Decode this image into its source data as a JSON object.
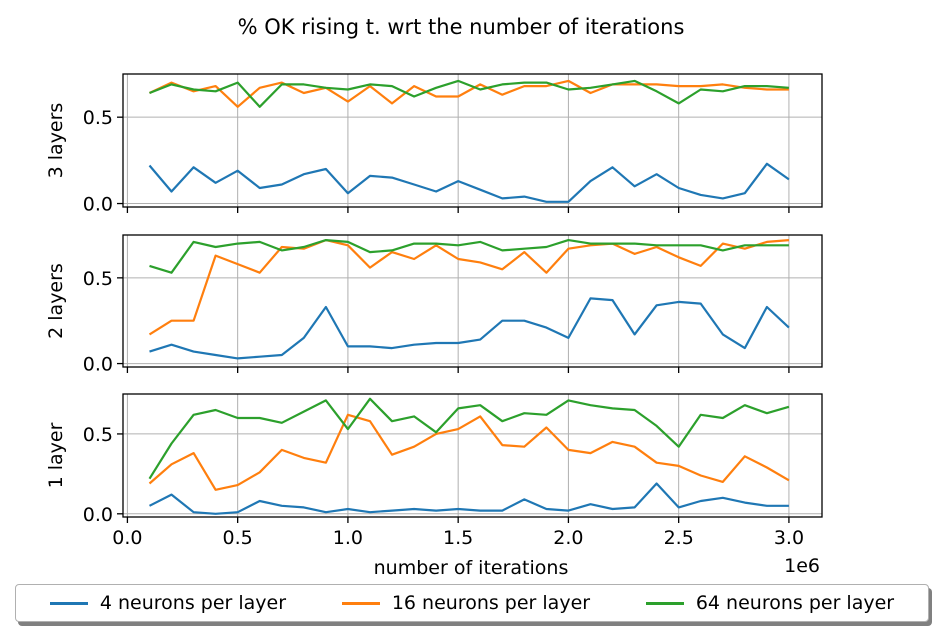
{
  "chart_data": {
    "type": "line",
    "title": "% OK rising t. wrt the number of iterations",
    "xlabel": "number of iterations",
    "x_offset_label": "1e6",
    "x": [
      100000,
      200000,
      300000,
      400000,
      500000,
      600000,
      700000,
      800000,
      900000,
      1000000,
      1100000,
      1200000,
      1300000,
      1400000,
      1500000,
      1600000,
      1700000,
      1800000,
      1900000,
      2000000,
      2100000,
      2200000,
      2300000,
      2400000,
      2500000,
      2600000,
      2700000,
      2800000,
      2900000,
      3000000
    ],
    "xlim": [
      -20000,
      3150000
    ],
    "xticks": [
      0,
      500000,
      1000000,
      1500000,
      2000000,
      2500000,
      3000000
    ],
    "xtick_labels": [
      "0.0",
      "0.5",
      "1.0",
      "1.5",
      "2.0",
      "2.5",
      "3.0"
    ],
    "ylim": [
      -0.02,
      0.75
    ],
    "yticks": [
      0,
      0.5
    ],
    "ytick_labels": [
      "0.0",
      "0.5"
    ],
    "grid": true,
    "legend_placement": "bottom",
    "legend": [
      "4 neurons per layer",
      "16 neurons per layer",
      "64 neurons per layer"
    ],
    "colors": [
      "#1f77b4",
      "#ff7f0e",
      "#2ca02c"
    ],
    "subplots": [
      {
        "ylabel": "3 layers",
        "series": [
          {
            "name": "4 neurons per layer",
            "values": [
              0.22,
              0.07,
              0.21,
              0.12,
              0.19,
              0.09,
              0.11,
              0.17,
              0.2,
              0.06,
              0.16,
              0.15,
              0.11,
              0.07,
              0.13,
              0.08,
              0.03,
              0.04,
              0.01,
              0.01,
              0.13,
              0.21,
              0.1,
              0.17,
              0.09,
              0.05,
              0.03,
              0.06,
              0.23,
              0.14
            ]
          },
          {
            "name": "16 neurons per layer",
            "values": [
              0.64,
              0.7,
              0.65,
              0.68,
              0.56,
              0.67,
              0.7,
              0.64,
              0.67,
              0.59,
              0.68,
              0.58,
              0.68,
              0.62,
              0.62,
              0.69,
              0.63,
              0.68,
              0.68,
              0.71,
              0.64,
              0.69,
              0.69,
              0.69,
              0.68,
              0.68,
              0.69,
              0.67,
              0.66,
              0.66
            ]
          },
          {
            "name": "64 neurons per layer",
            "values": [
              0.64,
              0.69,
              0.66,
              0.65,
              0.7,
              0.56,
              0.69,
              0.69,
              0.67,
              0.66,
              0.69,
              0.68,
              0.62,
              0.67,
              0.71,
              0.66,
              0.69,
              0.7,
              0.7,
              0.66,
              0.67,
              0.69,
              0.71,
              0.65,
              0.58,
              0.66,
              0.65,
              0.68,
              0.68,
              0.67
            ]
          }
        ]
      },
      {
        "ylabel": "2 layers",
        "series": [
          {
            "name": "4 neurons per layer",
            "values": [
              0.07,
              0.11,
              0.07,
              0.05,
              0.03,
              0.04,
              0.05,
              0.15,
              0.33,
              0.1,
              0.1,
              0.09,
              0.11,
              0.12,
              0.12,
              0.14,
              0.25,
              0.25,
              0.21,
              0.15,
              0.38,
              0.37,
              0.17,
              0.34,
              0.36,
              0.35,
              0.17,
              0.09,
              0.33,
              0.21
            ]
          },
          {
            "name": "16 neurons per layer",
            "values": [
              0.17,
              0.25,
              0.25,
              0.63,
              0.58,
              0.53,
              0.68,
              0.67,
              0.72,
              0.69,
              0.56,
              0.65,
              0.61,
              0.69,
              0.61,
              0.59,
              0.55,
              0.65,
              0.53,
              0.67,
              0.69,
              0.7,
              0.64,
              0.68,
              0.62,
              0.57,
              0.7,
              0.67,
              0.71,
              0.72
            ]
          },
          {
            "name": "64 neurons per layer",
            "values": [
              0.57,
              0.53,
              0.71,
              0.68,
              0.7,
              0.71,
              0.66,
              0.68,
              0.72,
              0.71,
              0.65,
              0.66,
              0.7,
              0.7,
              0.69,
              0.71,
              0.66,
              0.67,
              0.68,
              0.72,
              0.7,
              0.7,
              0.7,
              0.69,
              0.69,
              0.69,
              0.66,
              0.69,
              0.69,
              0.69
            ]
          }
        ]
      },
      {
        "ylabel": "1 layer",
        "series": [
          {
            "name": "4 neurons per layer",
            "values": [
              0.05,
              0.12,
              0.01,
              0.0,
              0.01,
              0.08,
              0.05,
              0.04,
              0.01,
              0.03,
              0.01,
              0.02,
              0.03,
              0.02,
              0.03,
              0.02,
              0.02,
              0.09,
              0.03,
              0.02,
              0.06,
              0.03,
              0.04,
              0.19,
              0.04,
              0.08,
              0.1,
              0.07,
              0.05,
              0.05
            ]
          },
          {
            "name": "16 neurons per layer",
            "values": [
              0.19,
              0.31,
              0.38,
              0.15,
              0.18,
              0.26,
              0.4,
              0.35,
              0.32,
              0.62,
              0.58,
              0.37,
              0.42,
              0.5,
              0.53,
              0.61,
              0.43,
              0.42,
              0.54,
              0.4,
              0.38,
              0.45,
              0.42,
              0.32,
              0.3,
              0.24,
              0.2,
              0.36,
              0.29,
              0.21
            ]
          },
          {
            "name": "64 neurons per layer",
            "values": [
              0.22,
              0.44,
              0.62,
              0.65,
              0.6,
              0.6,
              0.57,
              0.64,
              0.71,
              0.53,
              0.72,
              0.58,
              0.61,
              0.51,
              0.66,
              0.68,
              0.58,
              0.63,
              0.62,
              0.71,
              0.68,
              0.66,
              0.65,
              0.55,
              0.42,
              0.62,
              0.6,
              0.68,
              0.63,
              0.67
            ]
          }
        ]
      }
    ]
  }
}
